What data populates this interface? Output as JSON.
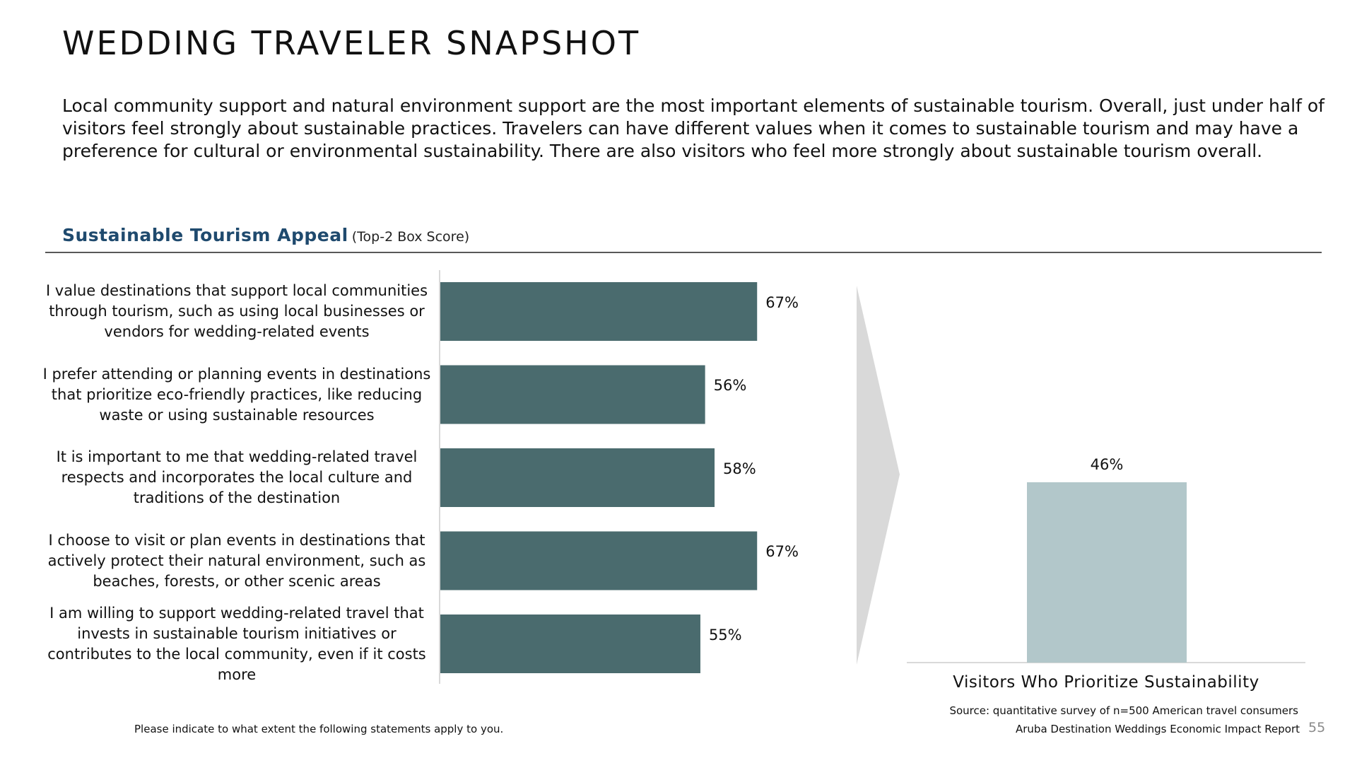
{
  "title": "WEDDING TRAVELER SNAPSHOT",
  "intro": "Local community support and natural environment support are the most important elements of sustainable tourism. Overall, just under half of visitors feel strongly about sustainable practices. Travelers can have different values when it comes to sustainable tourism and may have a preference for cultural or environmental sustainability. There are also visitors who feel more strongly about sustainable tourism overall.",
  "section": {
    "title": "Sustainable Tourism Appeal",
    "note": "(Top-2 Box Score)"
  },
  "chart_data": [
    {
      "type": "bar",
      "orientation": "horizontal",
      "categories": [
        "I value destinations that support local communities through tourism, such as using local businesses or vendors for wedding-related events",
        "I prefer attending or planning events in destinations that prioritize eco-friendly practices, like reducing waste or using sustainable resources",
        "It is important to me that wedding-related travel respects and incorporates the local culture and traditions of the destination",
        "I choose to visit or plan events in destinations that actively protect their natural environment, such as beaches, forests, or other scenic areas",
        "I am willing to support wedding-related travel that invests in sustainable tourism initiatives or contributes to the local community, even if it costs more"
      ],
      "values": [
        67,
        56,
        58,
        67,
        55
      ],
      "data_labels": [
        "67%",
        "56%",
        "58%",
        "67%",
        "55%"
      ],
      "color": "#4a6b6e",
      "grid": false
    },
    {
      "type": "bar",
      "orientation": "vertical",
      "categories": [
        "Visitors Who Prioritize Sustainability"
      ],
      "values": [
        46
      ],
      "data_labels": [
        "46%"
      ],
      "color": "#b2c7ca",
      "grid": false
    }
  ],
  "arrow_color": "#d9d9d9",
  "source": "Source: quantitative survey of n=500 American travel consumers",
  "footer": {
    "question": "Please indicate to what extent the following statements apply to you.",
    "report": "Aruba Destination Weddings Economic Impact Report",
    "page": "55"
  }
}
